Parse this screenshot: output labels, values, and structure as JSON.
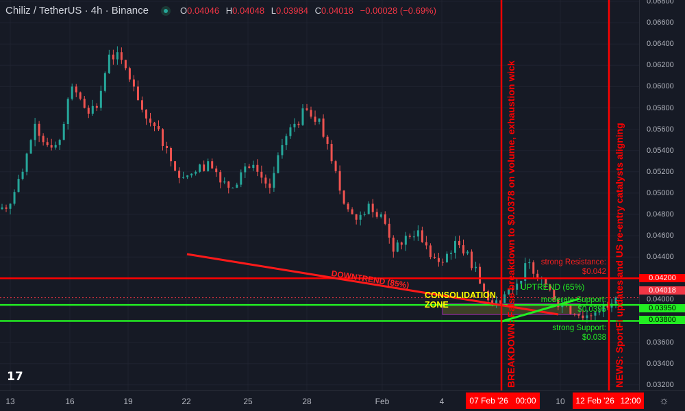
{
  "header": {
    "symbol": "Chiliz / TetherUS · 4h · Binance",
    "o_label": "O",
    "o": "0.04046",
    "h_label": "H",
    "h": "0.04048",
    "l_label": "L",
    "l": "0.03984",
    "c_label": "C",
    "c": "0.04018",
    "change": "−0.00028 (−0.69%)"
  },
  "colors": {
    "up": "#26a69a",
    "down": "#ef5350",
    "red": "#ff0000",
    "green": "#22ee22",
    "yellow": "#ffff00",
    "purple": "#9c27b0"
  },
  "price_axis": {
    "labels": [
      "0.06800",
      "0.06600",
      "0.06400",
      "0.06200",
      "0.06000",
      "0.05800",
      "0.05600",
      "0.05400",
      "0.05200",
      "0.05000",
      "0.04800",
      "0.04600",
      "0.04400",
      "0.04200",
      "0.04000",
      "0.03800",
      "0.03600",
      "0.03400",
      "0.03200"
    ],
    "highlights": [
      {
        "value": "0.04200",
        "color": "#ff0000"
      },
      {
        "value": "0.04018",
        "color": "#f23645"
      },
      {
        "value": "0.03950",
        "color": "#22ee22"
      },
      {
        "value": "0.03800",
        "color": "#22ee22"
      }
    ]
  },
  "time_axis": {
    "labels": [
      "13",
      "16",
      "19",
      "22",
      "25",
      "28",
      "Feb",
      "4",
      "10"
    ],
    "marker1_date": "07 Feb '26",
    "marker1_time": "00:00",
    "marker2_date": "12 Feb '26",
    "marker2_time": "12:00"
  },
  "annotations": {
    "downtrend": "DOWNTREND (85%)",
    "uptrend": "UPTREND (65%)",
    "consolidation": "CONSOLIDATION ZONE",
    "strong_resistance": "strong Resistance: $0.042",
    "moderate_support": "moderate Support: $0.0395",
    "strong_support": "strong Support: $0.038",
    "breakdown": "BREAKDOWN: False breakdown to $0.0378 on volume, exhaustion wick",
    "news": "NEWS: SportFi updates and US re-entry catalysts aligning"
  },
  "logo": "TV",
  "chart_data": {
    "type": "candlestick",
    "ylim": [
      0.032,
      0.068
    ],
    "closes": [
      0.049,
      0.052,
      0.0565,
      0.0545,
      0.055,
      0.06,
      0.058,
      0.058,
      0.063,
      0.0625,
      0.06,
      0.057,
      0.056,
      0.053,
      0.0515,
      0.052,
      0.053,
      0.051,
      0.0505,
      0.0525,
      0.052,
      0.0505,
      0.0545,
      0.0565,
      0.0578,
      0.057,
      0.053,
      0.049,
      0.0475,
      0.049,
      0.048,
      0.0445,
      0.046,
      0.0465,
      0.044,
      0.0435,
      0.0455,
      0.0445,
      0.0415,
      0.0395,
      0.0405,
      0.0415,
      0.0435,
      0.042,
      0.04,
      0.0395,
      0.0385,
      0.0385,
      0.0395,
      0.04018
    ]
  }
}
